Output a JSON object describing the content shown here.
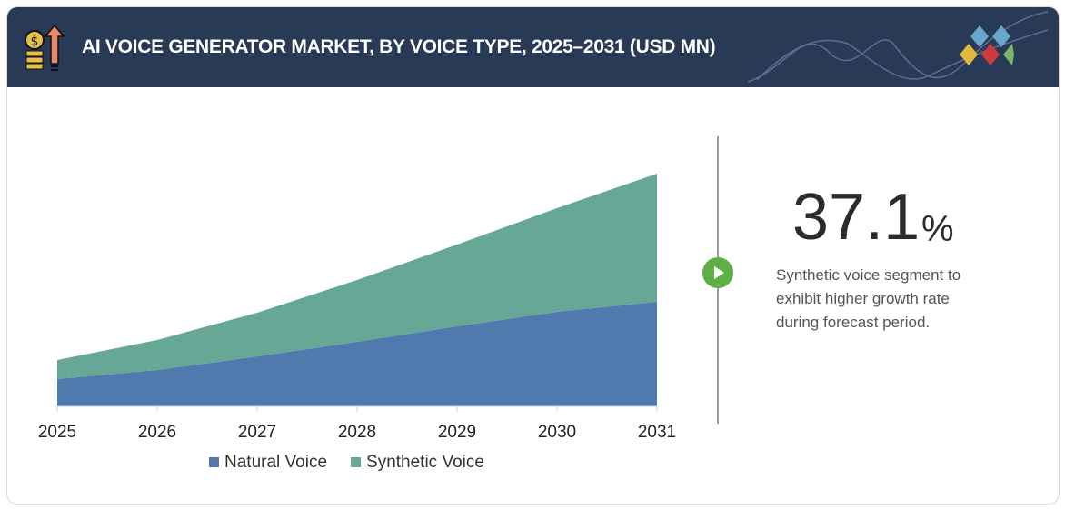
{
  "header": {
    "title": "AI VOICE GENERATOR MARKET, BY VOICE TYPE, 2025–2031 (USD MN)",
    "logo_colors": [
      "#6ba7cc",
      "#e2b93b",
      "#cf3a3f",
      "#7fb56a"
    ]
  },
  "callout": {
    "value": "37.1",
    "unit": "%",
    "text": "Synthetic voice segment to exhibit higher growth rate during forecast period."
  },
  "chart_data": {
    "type": "area",
    "stacked": true,
    "title": "",
    "xlabel": "",
    "ylabel": "",
    "categories": [
      "2025",
      "2026",
      "2027",
      "2028",
      "2029",
      "2030",
      "2031"
    ],
    "series": [
      {
        "name": "Natural Voice",
        "color": "#5079ae",
        "values": [
          30,
          40,
          55,
          71,
          88,
          104,
          115
        ]
      },
      {
        "name": "Synthetic Voice",
        "color": "#66a795",
        "values": [
          21,
          33,
          48,
          68,
          90,
          114,
          141
        ]
      }
    ],
    "ylim": [
      0,
      260
    ],
    "y_axis_labels": false,
    "grid": false,
    "legend": "bottom"
  }
}
